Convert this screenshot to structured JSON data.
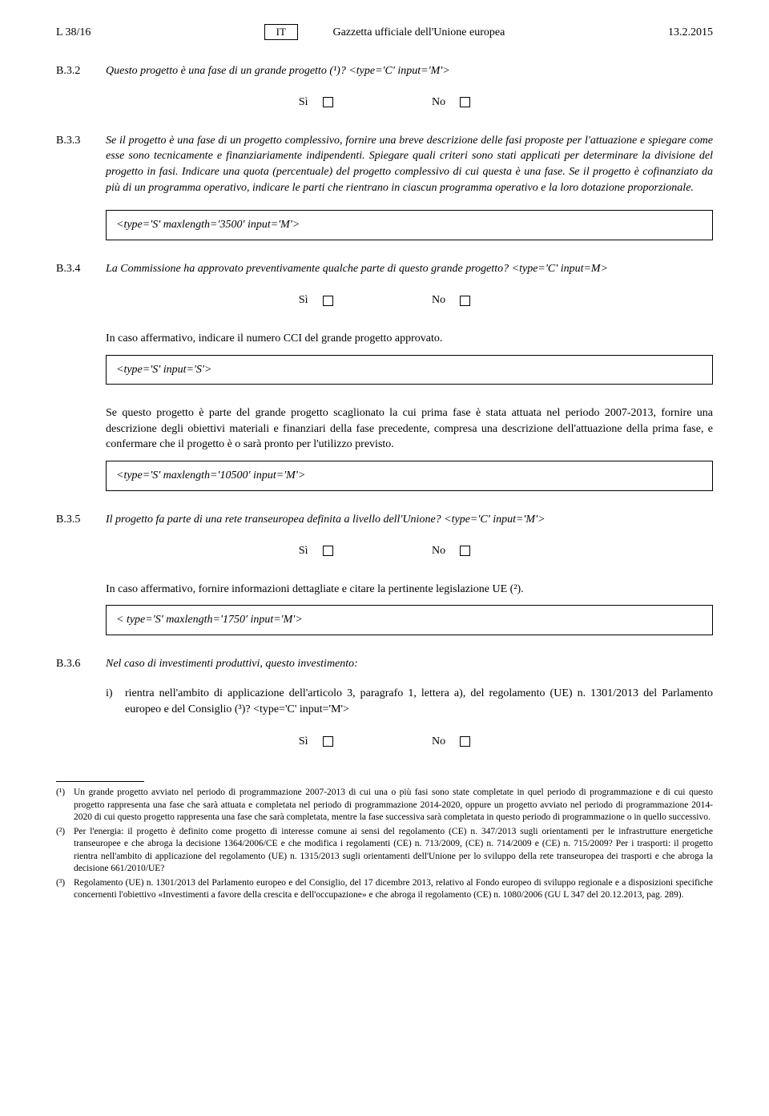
{
  "header": {
    "left": "L 38/16",
    "lang_box": "IT",
    "center": "Gazzetta ufficiale dell'Unione europea",
    "right": "13.2.2015"
  },
  "sections": {
    "b32": {
      "num": "B.3.2",
      "text": "Questo progetto è una fase di un grande progetto (¹)? <type='C' input='M'>"
    },
    "b33": {
      "num": "B.3.3",
      "text": "Se il progetto è una fase di un progetto complessivo, fornire una breve descrizione delle fasi proposte per l'attuazione e spiegare come esse sono tecnicamente e finanziariamente indipendenti. Spiegare quali criteri sono stati applicati per determinare la divisione del progetto in fasi. Indicare una quota (percentuale) del progetto complessivo di cui questa è una fase. Se il progetto è cofinanziato da più di un programma operativo, indicare le parti che rientrano in ciascun programma operativo e la loro dotazione proporzionale."
    },
    "b34": {
      "num": "B.3.4",
      "text": "La Commissione ha approvato preventivamente qualche parte di questo grande progetto? <type='C' input=M>",
      "followup": "In caso affermativo, indicare il numero CCI del grande progetto approvato.",
      "para": "Se questo progetto è parte del grande progetto scaglionato la cui prima fase è stata attuata nel periodo 2007-2013, fornire una descrizione degli obiettivi materiali e finanziari della fase precedente, compresa una descrizione dell'attuazione della prima fase, e confermare che il progetto è o sarà pronto per l'utilizzo previsto."
    },
    "b35": {
      "num": "B.3.5",
      "text": "Il progetto fa parte di una rete transeuropea definita a livello dell'Unione? <type='C' input='M'>",
      "followup": "In caso affermativo, fornire informazioni dettagliate e citare la pertinente legislazione UE (²)."
    },
    "b36": {
      "num": "B.3.6",
      "text": "Nel caso di investimenti produttivi, questo investimento:",
      "item_i": "rientra nell'ambito di applicazione dell'articolo 3, paragrafo 1, lettera a), del regolamento (UE) n. 1301/2013 del Parlamento europeo e del Consiglio (³)? <type='C' input='M'>"
    }
  },
  "fields": {
    "f1": "<type='S' maxlength='3500' input='M'>",
    "f2": "<type='S' input='S'>",
    "f3": "<type='S' maxlength='10500' input='M'>",
    "f4": "< type='S' maxlength='1750' input='M'>"
  },
  "yesno": {
    "yes": "Sì",
    "no": "No"
  },
  "footnotes": {
    "n1": "Un grande progetto avviato nel periodo di programmazione 2007-2013 di cui una o più fasi sono state completate in quel periodo di programmazione e di cui questo progetto rappresenta una fase che sarà attuata e completata nel periodo di programmazione 2014-2020, oppure un progetto avviato nel periodo di programmazione 2014-2020 di cui questo progetto rappresenta una fase che sarà completata, mentre la fase successiva sarà completata in questo periodo di programmazione o in quello successivo.",
    "n2": "Per l'energia: il progetto è definito come progetto di interesse comune ai sensi del regolamento (CE) n. 347/2013 sugli orientamenti per le infrastrutture energetiche transeuropee e che abroga la decisione 1364/2006/CE e che modifica i regolamenti (CE) n. 713/2009, (CE) n. 714/2009 e (CE) n. 715/2009? Per i trasporti: il progetto rientra nell'ambito di applicazione del regolamento (UE) n. 1315/2013 sugli orientamenti dell'Unione per lo sviluppo della rete transeuropea dei trasporti e che abroga la decisione 661/2010/UE?",
    "n3": "Regolamento (UE) n. 1301/2013 del Parlamento europeo e del Consiglio, del 17 dicembre 2013, relativo al Fondo europeo di sviluppo regionale e a disposizioni specifiche concernenti l'obiettivo «Investimenti a favore della crescita e dell'occupazione» e che abroga il regolamento (CE) n. 1080/2006 (GU L 347 del 20.12.2013, pag. 289)."
  }
}
